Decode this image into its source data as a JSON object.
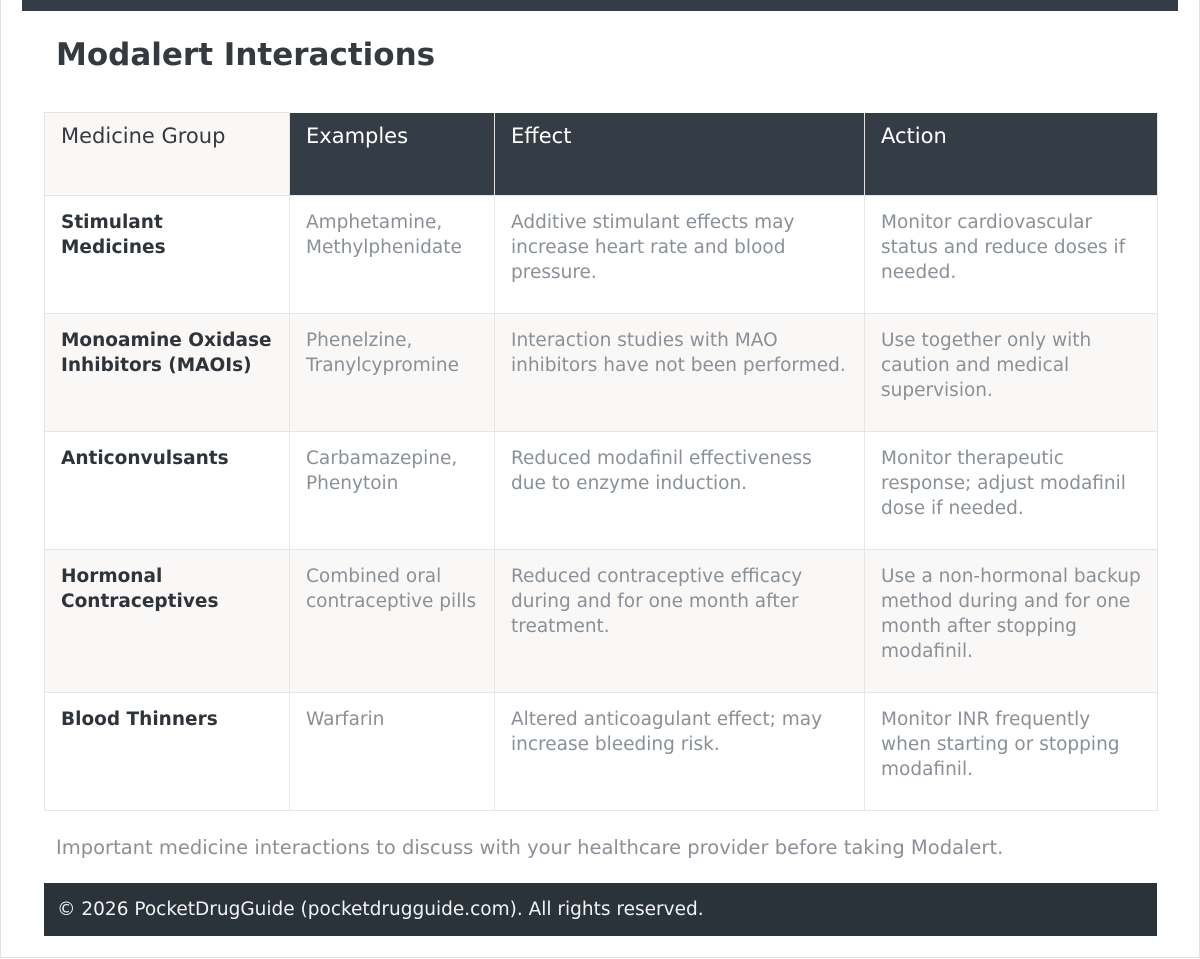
{
  "page": {
    "title": "Modalert Interactions",
    "caption": "Important medicine interactions to discuss with your healthcare provider before taking Modalert.",
    "footer": "© 2026 PocketDrugGuide (pocketdrugguide.com). All rights reserved."
  },
  "table": {
    "headers": [
      "Medicine Group",
      "Examples",
      "Effect",
      "Action"
    ],
    "rows": [
      {
        "group": "Stimulant Medicines",
        "examples": "Amphetamine, Methylphenidate",
        "effect": "Additive stimulant effects may increase heart rate and blood pressure.",
        "action": "Monitor cardiovascular status and reduce doses if needed."
      },
      {
        "group": "Monoamine Oxidase Inhibitors (MAOIs)",
        "examples": "Phenelzine, Tranylcypromine",
        "effect": "Interaction studies with MAO inhibitors have not been performed.",
        "action": "Use together only with caution and medical supervision."
      },
      {
        "group": "Anticonvulsants",
        "examples": "Carbamazepine, Phenytoin",
        "effect": "Reduced modafinil effectiveness due to enzyme induction.",
        "action": "Monitor therapeutic response; adjust modafinil dose if needed."
      },
      {
        "group": "Hormonal Contraceptives",
        "examples": "Combined oral contraceptive pills",
        "effect": "Reduced contraceptive efficacy during and for one month after treatment.",
        "action": "Use a non-hormonal backup method during and for one month after stopping modafinil."
      },
      {
        "group": "Blood Thinners",
        "examples": "Warfarin",
        "effect": "Altered anticoagulant effect; may increase bleeding risk.",
        "action": "Monitor INR frequently when starting or stopping modafinil."
      }
    ]
  },
  "colors": {
    "header_dark": "#343d46",
    "footer_dark": "#2a323a",
    "row_alt": "#f9f8f6",
    "muted_text": "#8a9097",
    "strong_text": "#2f343a"
  }
}
